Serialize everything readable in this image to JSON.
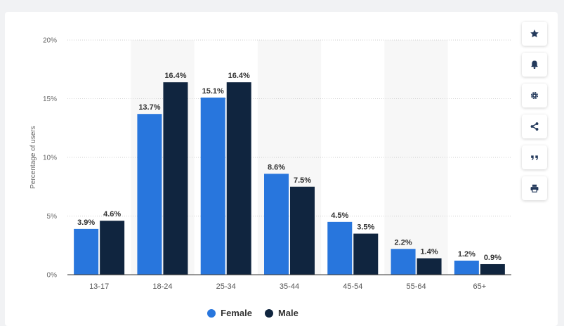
{
  "chart_data": {
    "type": "bar",
    "title": "",
    "xlabel": "",
    "ylabel": "Percentage of users",
    "categories": [
      "13-17",
      "18-24",
      "25-34",
      "35-44",
      "45-54",
      "55-64",
      "65+"
    ],
    "series": [
      {
        "name": "Female",
        "color": "#2876dd",
        "values": [
          3.9,
          13.7,
          15.1,
          8.6,
          4.5,
          2.2,
          1.2
        ]
      },
      {
        "name": "Male",
        "color": "#10253f",
        "values": [
          4.6,
          16.4,
          16.4,
          7.5,
          3.5,
          1.4,
          0.9
        ]
      }
    ],
    "value_labels": [
      [
        "3.9%",
        "13.7%",
        "15.1%",
        "8.6%",
        "4.5%",
        "2.2%",
        "1.2%"
      ],
      [
        "4.6%",
        "16.4%",
        "16.4%",
        "7.5%",
        "3.5%",
        "1.4%",
        "0.9%"
      ]
    ],
    "ylim": [
      0,
      20
    ],
    "yticks": [
      0,
      5,
      10,
      15,
      20
    ],
    "ytick_labels": [
      "0%",
      "5%",
      "10%",
      "15%",
      "20%"
    ],
    "grid": true,
    "grid_style": "dotted horizontal",
    "alternating_column_shading": true,
    "legend_position": "bottom-center"
  },
  "toolbar": {
    "icons": [
      "star-icon",
      "bell-icon",
      "gear-icon",
      "share-icon",
      "quote-icon",
      "print-icon"
    ]
  }
}
